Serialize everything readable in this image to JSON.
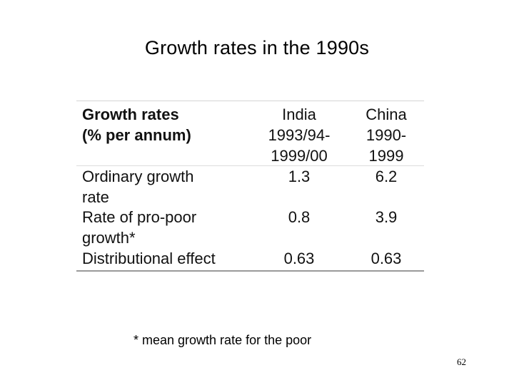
{
  "slide": {
    "title": "Growth rates in the 1990s",
    "footnote": "* mean growth rate for the poor",
    "page_number": "62"
  },
  "table": {
    "header": {
      "label_line1": "Growth rates",
      "label_line2": "(% per annum)",
      "india_line1": "India",
      "india_line2": "1993/94-",
      "india_line3": "1999/00",
      "china_line1": "China",
      "china_line2": "1990-",
      "china_line3": "1999"
    },
    "rows": [
      {
        "label_line1": "Ordinary growth",
        "label_line2": "rate",
        "india": "1.3",
        "china": "6.2"
      },
      {
        "label_line1": "Rate of pro-poor",
        "label_line2": "growth*",
        "india": "0.8",
        "china": "3.9"
      },
      {
        "label_line1": "Distributional effect",
        "india": "0.63",
        "china": "0.63"
      }
    ]
  }
}
